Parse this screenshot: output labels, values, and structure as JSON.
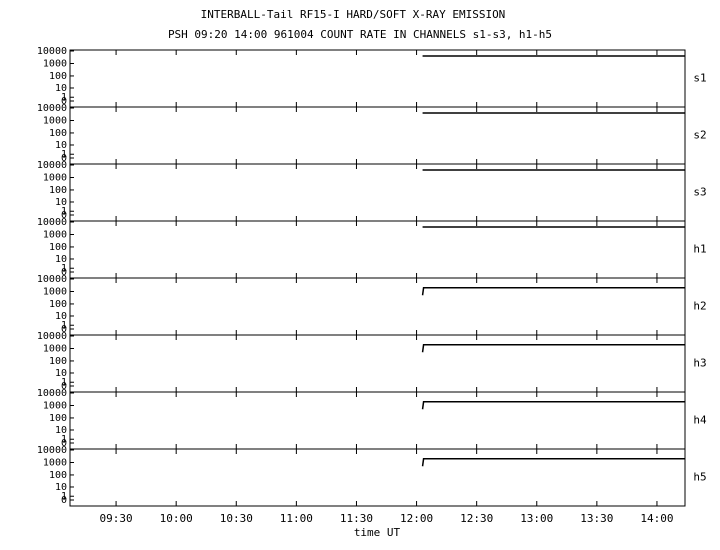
{
  "chart_data": {
    "type": "line",
    "title": "INTERBALL-Tail RF15-I HARD/SOFT X-RAY EMISSION",
    "subtitle": "PSH 09:20 14:00 961004  COUNT RATE IN CHANNELS s1-s3, h1-h5",
    "xlabel": "time UT",
    "xlim": [
      547,
      854
    ],
    "xticks": [
      {
        "value": 570,
        "label": "09:30"
      },
      {
        "value": 600,
        "label": "10:00"
      },
      {
        "value": 630,
        "label": "10:30"
      },
      {
        "value": 660,
        "label": "11:00"
      },
      {
        "value": 690,
        "label": "11:30"
      },
      {
        "value": 720,
        "label": "12:00"
      },
      {
        "value": 750,
        "label": "12:30"
      },
      {
        "value": 780,
        "label": "13:00"
      },
      {
        "value": 810,
        "label": "13:30"
      },
      {
        "value": 840,
        "label": "14:00"
      }
    ],
    "ylim": [
      0,
      10000
    ],
    "yticks": [
      0,
      1,
      10,
      100,
      1000,
      10000
    ],
    "yscale": "log1p",
    "series": [
      {
        "name": "s1",
        "color": "#000000",
        "x": [
          723,
          854
        ],
        "values": [
          4000,
          4000
        ]
      },
      {
        "name": "s2",
        "color": "#000000",
        "x": [
          723,
          854
        ],
        "values": [
          4000,
          4000
        ]
      },
      {
        "name": "s3",
        "color": "#000000",
        "x": [
          723,
          854
        ],
        "values": [
          4000,
          4000
        ]
      },
      {
        "name": "h1",
        "color": "#000000",
        "x": [
          723,
          854
        ],
        "values": [
          4000,
          4000
        ]
      },
      {
        "name": "h2",
        "color": "#000000",
        "x": [
          723,
          723.5,
          854
        ],
        "values": [
          500,
          2000,
          2000
        ]
      },
      {
        "name": "h3",
        "color": "#000000",
        "x": [
          723,
          723.5,
          854
        ],
        "values": [
          500,
          2000,
          2000
        ]
      },
      {
        "name": "h4",
        "color": "#000000",
        "x": [
          723,
          723.5,
          854
        ],
        "values": [
          500,
          2000,
          2000
        ]
      },
      {
        "name": "h5",
        "color": "#000000",
        "x": [
          723,
          723.5,
          854
        ],
        "values": [
          500,
          2000,
          2000
        ]
      }
    ]
  }
}
